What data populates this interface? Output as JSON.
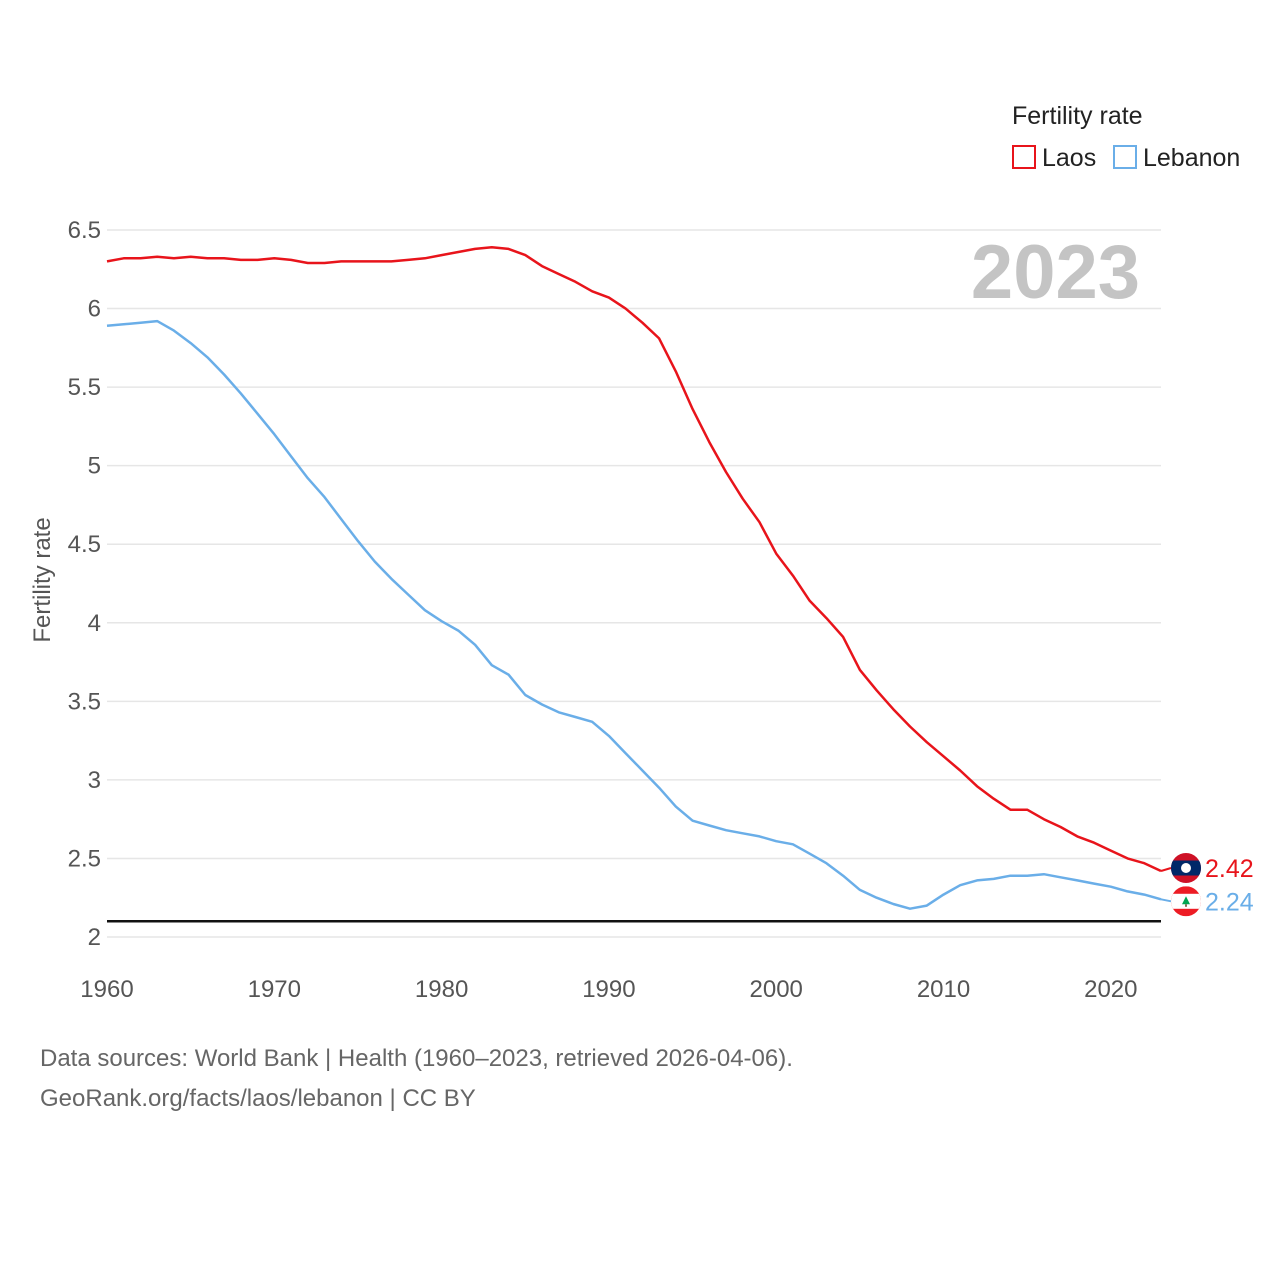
{
  "chart_data": {
    "type": "line",
    "title": "",
    "xlabel": "",
    "ylabel": "Fertility rate",
    "xlim": [
      1960,
      2023
    ],
    "ylim": [
      2,
      6.5
    ],
    "x_ticks": [
      1960,
      1970,
      1980,
      1990,
      2000,
      2010,
      2020
    ],
    "y_ticks": [
      2,
      2.5,
      3,
      3.5,
      4,
      4.5,
      5,
      5.5,
      6,
      6.5
    ],
    "y_tick_labels": [
      "2",
      "2.5",
      "3",
      "3.5",
      "4",
      "4.5",
      "5",
      "5.5",
      "6",
      "6.5"
    ],
    "legend_title": "Fertility rate",
    "legend_position": "top-right",
    "year_label": "2023",
    "reference_line": 2.1,
    "x": [
      1960,
      1961,
      1962,
      1963,
      1964,
      1965,
      1966,
      1967,
      1968,
      1969,
      1970,
      1971,
      1972,
      1973,
      1974,
      1975,
      1976,
      1977,
      1978,
      1979,
      1980,
      1981,
      1982,
      1983,
      1984,
      1985,
      1986,
      1987,
      1988,
      1989,
      1990,
      1991,
      1992,
      1993,
      1994,
      1995,
      1996,
      1997,
      1998,
      1999,
      2000,
      2001,
      2002,
      2003,
      2004,
      2005,
      2006,
      2007,
      2008,
      2009,
      2010,
      2011,
      2012,
      2013,
      2014,
      2015,
      2016,
      2017,
      2018,
      2019,
      2020,
      2021,
      2022,
      2023
    ],
    "series": [
      {
        "name": "Laos",
        "color": "#e8141b",
        "end_label": "2.42",
        "values": [
          6.3,
          6.32,
          6.32,
          6.33,
          6.32,
          6.33,
          6.32,
          6.32,
          6.31,
          6.31,
          6.32,
          6.31,
          6.29,
          6.29,
          6.3,
          6.3,
          6.3,
          6.3,
          6.31,
          6.32,
          6.34,
          6.36,
          6.38,
          6.39,
          6.38,
          6.34,
          6.27,
          6.22,
          6.17,
          6.11,
          6.07,
          6.0,
          5.91,
          5.81,
          5.6,
          5.36,
          5.15,
          4.96,
          4.79,
          4.64,
          4.44,
          4.3,
          4.14,
          4.03,
          3.91,
          3.7,
          3.57,
          3.45,
          3.34,
          3.24,
          3.15,
          3.06,
          2.96,
          2.88,
          2.81,
          2.81,
          2.75,
          2.7,
          2.64,
          2.6,
          2.55,
          2.5,
          2.47,
          2.42
        ]
      },
      {
        "name": "Lebanon",
        "color": "#6aaee8",
        "end_label": "2.24",
        "values": [
          5.89,
          5.9,
          5.91,
          5.92,
          5.86,
          5.78,
          5.69,
          5.58,
          5.46,
          5.33,
          5.2,
          5.06,
          4.92,
          4.8,
          4.66,
          4.52,
          4.39,
          4.28,
          4.18,
          4.08,
          4.01,
          3.95,
          3.86,
          3.73,
          3.67,
          3.54,
          3.48,
          3.43,
          3.4,
          3.37,
          3.28,
          3.17,
          3.06,
          2.95,
          2.83,
          2.74,
          2.71,
          2.68,
          2.66,
          2.64,
          2.61,
          2.59,
          2.53,
          2.47,
          2.39,
          2.3,
          2.25,
          2.21,
          2.18,
          2.2,
          2.27,
          2.33,
          2.36,
          2.37,
          2.39,
          2.39,
          2.4,
          2.38,
          2.36,
          2.34,
          2.32,
          2.29,
          2.27,
          2.24
        ]
      }
    ]
  },
  "footer": {
    "line1": "Data sources: World Bank | Health (1960–2023, retrieved 2026-04-06).",
    "line2": "GeoRank.org/facts/laos/lebanon | CC BY"
  }
}
